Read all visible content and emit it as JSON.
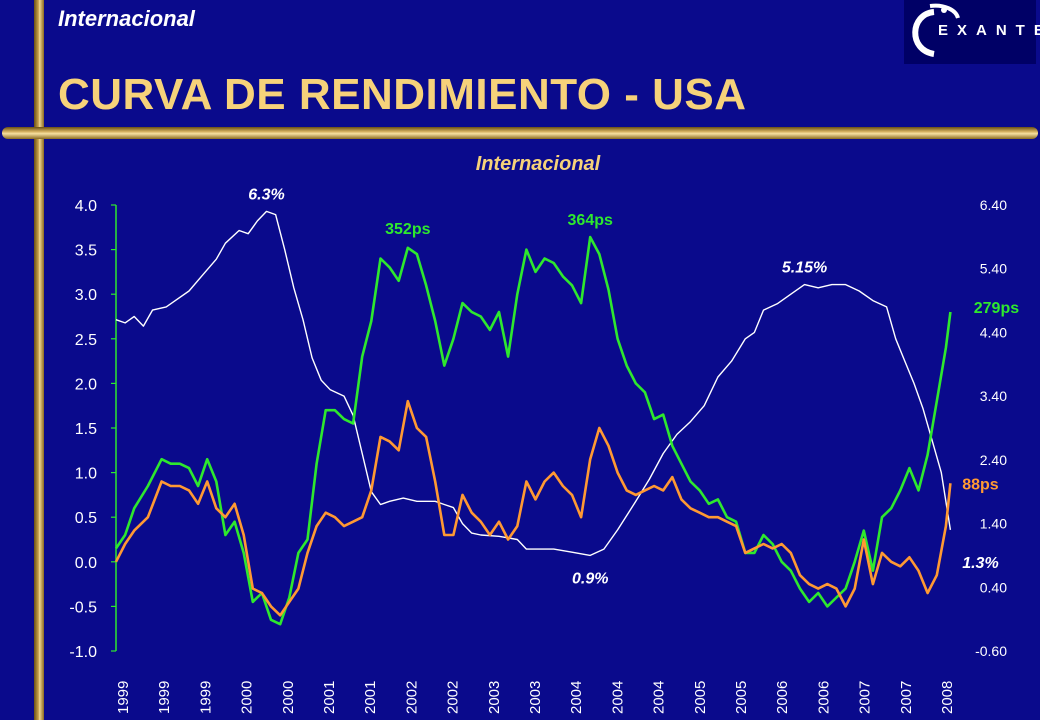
{
  "header": {
    "section_label": "Internacional",
    "title": "CURVA DE RENDIMIENTO - USA",
    "logo_text": "EXANTE"
  },
  "chart_data": {
    "type": "line",
    "title": "Internacional",
    "x_tick_labels": [
      "1999",
      "1999",
      "1999",
      "2000",
      "2000",
      "2001",
      "2001",
      "2002",
      "2002",
      "2003",
      "2003",
      "2004",
      "2004",
      "2004",
      "2005",
      "2005",
      "2006",
      "2006",
      "2007",
      "2007",
      "2008"
    ],
    "xlim": [
      1999.0,
      2008.2
    ],
    "y_left": {
      "lim": [
        -1.0,
        4.0
      ],
      "ticks": [
        "4.0",
        "3.5",
        "3.0",
        "2.5",
        "2.0",
        "1.5",
        "1.0",
        "0.5",
        "0.0",
        "-0.5",
        "-1.0"
      ]
    },
    "y_right": {
      "lim": [
        -0.6,
        6.4
      ],
      "ticks": [
        "6.40",
        "5.40",
        "4.40",
        "3.40",
        "2.40",
        "1.40",
        "0.40",
        "-0.60"
      ]
    },
    "series": [
      {
        "color": "#ffffff",
        "axis": "right",
        "points": [
          [
            1999.0,
            4.6
          ],
          [
            1999.1,
            4.55
          ],
          [
            1999.2,
            4.65
          ],
          [
            1999.3,
            4.5
          ],
          [
            1999.4,
            4.75
          ],
          [
            1999.55,
            4.8
          ],
          [
            1999.65,
            4.9
          ],
          [
            1999.8,
            5.05
          ],
          [
            1999.95,
            5.3
          ],
          [
            2000.1,
            5.55
          ],
          [
            2000.2,
            5.8
          ],
          [
            2000.35,
            6.0
          ],
          [
            2000.45,
            5.95
          ],
          [
            2000.55,
            6.15
          ],
          [
            2000.65,
            6.3
          ],
          [
            2000.75,
            6.25
          ],
          [
            2000.85,
            5.7
          ],
          [
            2000.95,
            5.1
          ],
          [
            2001.05,
            4.6
          ],
          [
            2001.15,
            4.0
          ],
          [
            2001.25,
            3.65
          ],
          [
            2001.35,
            3.5
          ],
          [
            2001.5,
            3.4
          ],
          [
            2001.6,
            3.1
          ],
          [
            2001.7,
            2.5
          ],
          [
            2001.8,
            1.9
          ],
          [
            2001.9,
            1.7
          ],
          [
            2002.0,
            1.75
          ],
          [
            2002.15,
            1.8
          ],
          [
            2002.3,
            1.75
          ],
          [
            2002.5,
            1.75
          ],
          [
            2002.6,
            1.7
          ],
          [
            2002.7,
            1.65
          ],
          [
            2002.8,
            1.4
          ],
          [
            2002.9,
            1.25
          ],
          [
            2003.0,
            1.22
          ],
          [
            2003.2,
            1.2
          ],
          [
            2003.4,
            1.15
          ],
          [
            2003.5,
            1.0
          ],
          [
            2003.6,
            1.0
          ],
          [
            2003.8,
            1.0
          ],
          [
            2004.0,
            0.95
          ],
          [
            2004.2,
            0.9
          ],
          [
            2004.35,
            1.0
          ],
          [
            2004.5,
            1.3
          ],
          [
            2004.7,
            1.75
          ],
          [
            2004.85,
            2.1
          ],
          [
            2005.0,
            2.5
          ],
          [
            2005.15,
            2.8
          ],
          [
            2005.3,
            3.0
          ],
          [
            2005.45,
            3.25
          ],
          [
            2005.6,
            3.7
          ],
          [
            2005.75,
            3.95
          ],
          [
            2005.9,
            4.3
          ],
          [
            2006.0,
            4.4
          ],
          [
            2006.1,
            4.75
          ],
          [
            2006.25,
            4.85
          ],
          [
            2006.4,
            5.0
          ],
          [
            2006.55,
            5.15
          ],
          [
            2006.7,
            5.1
          ],
          [
            2006.85,
            5.15
          ],
          [
            2007.0,
            5.15
          ],
          [
            2007.15,
            5.05
          ],
          [
            2007.3,
            4.9
          ],
          [
            2007.45,
            4.8
          ],
          [
            2007.55,
            4.3
          ],
          [
            2007.65,
            3.95
          ],
          [
            2007.75,
            3.6
          ],
          [
            2007.85,
            3.2
          ],
          [
            2007.95,
            2.7
          ],
          [
            2008.05,
            2.2
          ],
          [
            2008.15,
            1.3
          ]
        ]
      },
      {
        "color": "#2ee82e",
        "axis": "left",
        "points": [
          [
            1999.0,
            0.15
          ],
          [
            1999.1,
            0.3
          ],
          [
            1999.2,
            0.6
          ],
          [
            1999.35,
            0.85
          ],
          [
            1999.5,
            1.15
          ],
          [
            1999.6,
            1.1
          ],
          [
            1999.7,
            1.1
          ],
          [
            1999.8,
            1.05
          ],
          [
            1999.9,
            0.85
          ],
          [
            2000.0,
            1.15
          ],
          [
            2000.1,
            0.9
          ],
          [
            2000.2,
            0.3
          ],
          [
            2000.3,
            0.45
          ],
          [
            2000.4,
            0.1
          ],
          [
            2000.5,
            -0.45
          ],
          [
            2000.6,
            -0.35
          ],
          [
            2000.7,
            -0.65
          ],
          [
            2000.8,
            -0.7
          ],
          [
            2000.9,
            -0.4
          ],
          [
            2001.0,
            0.1
          ],
          [
            2001.1,
            0.25
          ],
          [
            2001.2,
            1.1
          ],
          [
            2001.3,
            1.7
          ],
          [
            2001.4,
            1.7
          ],
          [
            2001.5,
            1.6
          ],
          [
            2001.6,
            1.55
          ],
          [
            2001.7,
            2.3
          ],
          [
            2001.8,
            2.7
          ],
          [
            2001.9,
            3.4
          ],
          [
            2002.0,
            3.3
          ],
          [
            2002.1,
            3.15
          ],
          [
            2002.2,
            3.52
          ],
          [
            2002.3,
            3.45
          ],
          [
            2002.4,
            3.1
          ],
          [
            2002.5,
            2.7
          ],
          [
            2002.6,
            2.2
          ],
          [
            2002.7,
            2.5
          ],
          [
            2002.8,
            2.9
          ],
          [
            2002.9,
            2.8
          ],
          [
            2003.0,
            2.75
          ],
          [
            2003.1,
            2.6
          ],
          [
            2003.2,
            2.8
          ],
          [
            2003.3,
            2.3
          ],
          [
            2003.4,
            3.0
          ],
          [
            2003.5,
            3.5
          ],
          [
            2003.6,
            3.25
          ],
          [
            2003.7,
            3.4
          ],
          [
            2003.8,
            3.35
          ],
          [
            2003.9,
            3.2
          ],
          [
            2004.0,
            3.1
          ],
          [
            2004.1,
            2.9
          ],
          [
            2004.2,
            3.64
          ],
          [
            2004.3,
            3.45
          ],
          [
            2004.4,
            3.05
          ],
          [
            2004.5,
            2.5
          ],
          [
            2004.6,
            2.2
          ],
          [
            2004.7,
            2.0
          ],
          [
            2004.8,
            1.9
          ],
          [
            2004.9,
            1.6
          ],
          [
            2005.0,
            1.65
          ],
          [
            2005.1,
            1.3
          ],
          [
            2005.2,
            1.1
          ],
          [
            2005.3,
            0.9
          ],
          [
            2005.4,
            0.8
          ],
          [
            2005.5,
            0.65
          ],
          [
            2005.6,
            0.7
          ],
          [
            2005.7,
            0.5
          ],
          [
            2005.8,
            0.45
          ],
          [
            2005.9,
            0.1
          ],
          [
            2006.0,
            0.1
          ],
          [
            2006.1,
            0.3
          ],
          [
            2006.2,
            0.2
          ],
          [
            2006.3,
            0.0
          ],
          [
            2006.4,
            -0.1
          ],
          [
            2006.5,
            -0.3
          ],
          [
            2006.6,
            -0.45
          ],
          [
            2006.7,
            -0.35
          ],
          [
            2006.8,
            -0.5
          ],
          [
            2006.9,
            -0.4
          ],
          [
            2007.0,
            -0.3
          ],
          [
            2007.1,
            0.0
          ],
          [
            2007.2,
            0.35
          ],
          [
            2007.3,
            -0.1
          ],
          [
            2007.4,
            0.5
          ],
          [
            2007.5,
            0.6
          ],
          [
            2007.6,
            0.8
          ],
          [
            2007.7,
            1.05
          ],
          [
            2007.8,
            0.8
          ],
          [
            2007.9,
            1.2
          ],
          [
            2008.0,
            1.8
          ],
          [
            2008.1,
            2.4
          ],
          [
            2008.15,
            2.8
          ]
        ]
      },
      {
        "color": "#ff9933",
        "axis": "left",
        "points": [
          [
            1999.0,
            0.0
          ],
          [
            1999.1,
            0.2
          ],
          [
            1999.2,
            0.35
          ],
          [
            1999.35,
            0.5
          ],
          [
            1999.5,
            0.9
          ],
          [
            1999.6,
            0.85
          ],
          [
            1999.7,
            0.85
          ],
          [
            1999.8,
            0.8
          ],
          [
            1999.9,
            0.65
          ],
          [
            2000.0,
            0.9
          ],
          [
            2000.1,
            0.6
          ],
          [
            2000.2,
            0.5
          ],
          [
            2000.3,
            0.65
          ],
          [
            2000.4,
            0.3
          ],
          [
            2000.5,
            -0.3
          ],
          [
            2000.6,
            -0.35
          ],
          [
            2000.7,
            -0.5
          ],
          [
            2000.8,
            -0.6
          ],
          [
            2000.9,
            -0.45
          ],
          [
            2001.0,
            -0.3
          ],
          [
            2001.1,
            0.1
          ],
          [
            2001.2,
            0.4
          ],
          [
            2001.3,
            0.55
          ],
          [
            2001.4,
            0.5
          ],
          [
            2001.5,
            0.4
          ],
          [
            2001.6,
            0.45
          ],
          [
            2001.7,
            0.5
          ],
          [
            2001.8,
            0.8
          ],
          [
            2001.9,
            1.4
          ],
          [
            2002.0,
            1.35
          ],
          [
            2002.1,
            1.25
          ],
          [
            2002.2,
            1.8
          ],
          [
            2002.3,
            1.5
          ],
          [
            2002.4,
            1.4
          ],
          [
            2002.5,
            0.9
          ],
          [
            2002.6,
            0.3
          ],
          [
            2002.7,
            0.3
          ],
          [
            2002.8,
            0.75
          ],
          [
            2002.9,
            0.55
          ],
          [
            2003.0,
            0.45
          ],
          [
            2003.1,
            0.3
          ],
          [
            2003.2,
            0.45
          ],
          [
            2003.3,
            0.25
          ],
          [
            2003.4,
            0.4
          ],
          [
            2003.5,
            0.9
          ],
          [
            2003.6,
            0.7
          ],
          [
            2003.7,
            0.9
          ],
          [
            2003.8,
            1.0
          ],
          [
            2003.9,
            0.85
          ],
          [
            2004.0,
            0.75
          ],
          [
            2004.1,
            0.5
          ],
          [
            2004.2,
            1.15
          ],
          [
            2004.3,
            1.5
          ],
          [
            2004.4,
            1.3
          ],
          [
            2004.5,
            1.0
          ],
          [
            2004.6,
            0.8
          ],
          [
            2004.7,
            0.75
          ],
          [
            2004.8,
            0.8
          ],
          [
            2004.9,
            0.85
          ],
          [
            2005.0,
            0.8
          ],
          [
            2005.1,
            0.95
          ],
          [
            2005.2,
            0.7
          ],
          [
            2005.3,
            0.6
          ],
          [
            2005.4,
            0.55
          ],
          [
            2005.5,
            0.5
          ],
          [
            2005.6,
            0.5
          ],
          [
            2005.7,
            0.45
          ],
          [
            2005.8,
            0.4
          ],
          [
            2005.9,
            0.1
          ],
          [
            2006.0,
            0.15
          ],
          [
            2006.1,
            0.2
          ],
          [
            2006.2,
            0.15
          ],
          [
            2006.3,
            0.2
          ],
          [
            2006.4,
            0.1
          ],
          [
            2006.5,
            -0.15
          ],
          [
            2006.6,
            -0.25
          ],
          [
            2006.7,
            -0.3
          ],
          [
            2006.8,
            -0.25
          ],
          [
            2006.9,
            -0.3
          ],
          [
            2007.0,
            -0.5
          ],
          [
            2007.1,
            -0.3
          ],
          [
            2007.2,
            0.25
          ],
          [
            2007.3,
            -0.25
          ],
          [
            2007.4,
            0.1
          ],
          [
            2007.5,
            0.0
          ],
          [
            2007.6,
            -0.05
          ],
          [
            2007.7,
            0.05
          ],
          [
            2007.8,
            -0.1
          ],
          [
            2007.9,
            -0.35
          ],
          [
            2008.0,
            -0.15
          ],
          [
            2008.1,
            0.4
          ],
          [
            2008.15,
            0.88
          ]
        ]
      }
    ],
    "annotations": [
      {
        "text": "6.3%",
        "x": 2000.65,
        "y": 6.3,
        "axis": "right",
        "color": "#ffffff",
        "italic": true
      },
      {
        "text": "352ps",
        "x": 2002.2,
        "y": 3.52,
        "axis": "left",
        "color": "#2ee82e",
        "italic": false
      },
      {
        "text": "364ps",
        "x": 2004.2,
        "y": 3.64,
        "axis": "left",
        "color": "#2ee82e",
        "italic": false
      },
      {
        "text": "5.15%",
        "x": 2006.55,
        "y": 5.15,
        "axis": "right",
        "color": "#ffffff",
        "italic": true
      },
      {
        "text": "279ps",
        "x": 2008.15,
        "y": 2.79,
        "axis": "left",
        "color": "#2ee82e",
        "italic": false
      },
      {
        "text": "88ps",
        "x": 2008.15,
        "y": 0.88,
        "axis": "left",
        "color": "#ff9933",
        "italic": false
      },
      {
        "text": "1.3%",
        "x": 2008.15,
        "y": 1.3,
        "axis": "right",
        "color": "#ffffff",
        "italic": true
      },
      {
        "text": "0.9%",
        "x": 2004.2,
        "y": 0.9,
        "axis": "right",
        "color": "#ffffff",
        "italic": true
      }
    ],
    "legend": "none",
    "grid": false
  }
}
